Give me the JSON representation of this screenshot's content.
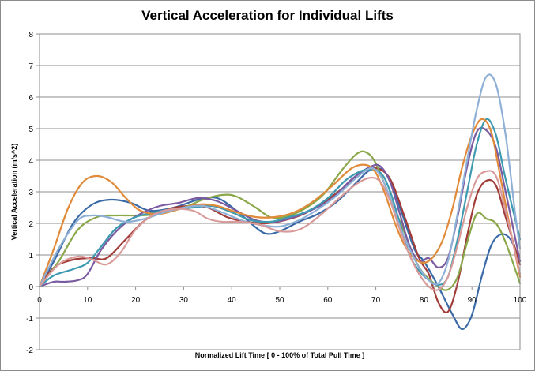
{
  "chart_data": {
    "type": "line",
    "title": "Vertical Acceleration for Individual Lifts",
    "xlabel": "Normalized Lift Time [ 0 - 100% of Total Pull Time ]",
    "ylabel": "Vertical Acceleration (m/s^2)",
    "xlim": [
      0,
      100
    ],
    "ylim": [
      -2,
      8
    ],
    "xticks": [
      "0",
      "10",
      "20",
      "30",
      "40",
      "50",
      "60",
      "70",
      "80",
      "90",
      "100"
    ],
    "yticks": [
      "-2",
      "-1",
      "0",
      "1",
      "2",
      "3",
      "4",
      "5",
      "6",
      "7",
      "8"
    ],
    "grid": "horizontal",
    "legend": "none",
    "series": [
      {
        "color": "#3a6aa6",
        "points": [
          [
            0,
            0
          ],
          [
            3,
            0.8
          ],
          [
            7,
            2.0
          ],
          [
            11,
            2.6
          ],
          [
            15,
            2.75
          ],
          [
            19,
            2.65
          ],
          [
            23,
            2.4
          ],
          [
            28,
            2.5
          ],
          [
            33,
            2.75
          ],
          [
            37,
            2.8
          ],
          [
            41,
            2.4
          ],
          [
            44,
            2.0
          ],
          [
            47,
            1.68
          ],
          [
            50,
            1.75
          ],
          [
            54,
            2.05
          ],
          [
            58,
            2.3
          ],
          [
            62,
            2.7
          ],
          [
            66,
            3.3
          ],
          [
            69,
            3.7
          ],
          [
            72,
            3.6
          ],
          [
            75,
            2.5
          ],
          [
            78,
            1.2
          ],
          [
            80,
            0.8
          ],
          [
            83,
            0.0
          ],
          [
            86,
            -0.9
          ],
          [
            88,
            -1.35
          ],
          [
            90,
            -0.9
          ],
          [
            92,
            0.3
          ],
          [
            94,
            1.3
          ],
          [
            96,
            1.65
          ],
          [
            98,
            1.5
          ],
          [
            100,
            0.8
          ]
        ]
      },
      {
        "color": "#a23c38",
        "points": [
          [
            0,
            0
          ],
          [
            3,
            0.6
          ],
          [
            7,
            0.85
          ],
          [
            11,
            0.9
          ],
          [
            14,
            0.9
          ],
          [
            18,
            1.5
          ],
          [
            22,
            2.1
          ],
          [
            27,
            2.45
          ],
          [
            31,
            2.55
          ],
          [
            35,
            2.5
          ],
          [
            39,
            2.2
          ],
          [
            43,
            2.05
          ],
          [
            47,
            2.0
          ],
          [
            51,
            2.1
          ],
          [
            55,
            2.3
          ],
          [
            59,
            2.65
          ],
          [
            63,
            3.1
          ],
          [
            67,
            3.6
          ],
          [
            70,
            3.75
          ],
          [
            73,
            3.4
          ],
          [
            76,
            2.2
          ],
          [
            79,
            0.9
          ],
          [
            81,
            0.4
          ],
          [
            83,
            -0.5
          ],
          [
            85,
            -0.8
          ],
          [
            87,
            0.1
          ],
          [
            89,
            1.6
          ],
          [
            91,
            2.9
          ],
          [
            93,
            3.35
          ],
          [
            95,
            3.2
          ],
          [
            97,
            2.2
          ],
          [
            100,
            0.7
          ]
        ]
      },
      {
        "color": "#8aa74a",
        "points": [
          [
            0,
            0
          ],
          [
            4,
            0.8
          ],
          [
            8,
            1.8
          ],
          [
            12,
            2.2
          ],
          [
            16,
            2.25
          ],
          [
            20,
            2.25
          ],
          [
            25,
            2.3
          ],
          [
            30,
            2.5
          ],
          [
            34,
            2.75
          ],
          [
            38,
            2.9
          ],
          [
            41,
            2.85
          ],
          [
            45,
            2.5
          ],
          [
            48,
            2.2
          ],
          [
            51,
            2.2
          ],
          [
            55,
            2.45
          ],
          [
            59,
            2.9
          ],
          [
            63,
            3.7
          ],
          [
            66,
            4.2
          ],
          [
            68,
            4.25
          ],
          [
            70,
            3.9
          ],
          [
            73,
            2.8
          ],
          [
            76,
            1.7
          ],
          [
            78,
            0.9
          ],
          [
            80,
            0.4
          ],
          [
            83,
            0.0
          ],
          [
            85,
            -0.1
          ],
          [
            87,
            0.3
          ],
          [
            89,
            1.4
          ],
          [
            91,
            2.3
          ],
          [
            93,
            2.15
          ],
          [
            95,
            2.0
          ],
          [
            97,
            1.4
          ],
          [
            100,
            0.1
          ]
        ]
      },
      {
        "color": "#7a5aa0",
        "points": [
          [
            0,
            0
          ],
          [
            3,
            0.15
          ],
          [
            5,
            0.15
          ],
          [
            8,
            0.2
          ],
          [
            10,
            0.4
          ],
          [
            13,
            1.2
          ],
          [
            17,
            1.9
          ],
          [
            21,
            2.3
          ],
          [
            25,
            2.55
          ],
          [
            29,
            2.65
          ],
          [
            33,
            2.8
          ],
          [
            37,
            2.7
          ],
          [
            41,
            2.4
          ],
          [
            45,
            2.1
          ],
          [
            49,
            2.05
          ],
          [
            53,
            2.2
          ],
          [
            57,
            2.45
          ],
          [
            61,
            2.8
          ],
          [
            65,
            3.4
          ],
          [
            69,
            3.8
          ],
          [
            71,
            3.8
          ],
          [
            73,
            3.3
          ],
          [
            75,
            2.3
          ],
          [
            77,
            1.3
          ],
          [
            79,
            0.8
          ],
          [
            81,
            0.9
          ],
          [
            83,
            0.6
          ],
          [
            85,
            0.9
          ],
          [
            87,
            2.2
          ],
          [
            89,
            3.8
          ],
          [
            91,
            4.9
          ],
          [
            93,
            4.95
          ],
          [
            95,
            4.4
          ],
          [
            97,
            3.0
          ],
          [
            100,
            0.8
          ]
        ]
      },
      {
        "color": "#3d9ab0",
        "points": [
          [
            0,
            0
          ],
          [
            3,
            0.35
          ],
          [
            7,
            0.55
          ],
          [
            10,
            0.75
          ],
          [
            13,
            1.3
          ],
          [
            16,
            1.85
          ],
          [
            20,
            2.2
          ],
          [
            24,
            2.35
          ],
          [
            28,
            2.45
          ],
          [
            32,
            2.5
          ],
          [
            36,
            2.55
          ],
          [
            40,
            2.35
          ],
          [
            44,
            2.1
          ],
          [
            48,
            2.05
          ],
          [
            52,
            2.2
          ],
          [
            56,
            2.4
          ],
          [
            60,
            2.8
          ],
          [
            64,
            3.4
          ],
          [
            68,
            3.7
          ],
          [
            71,
            3.6
          ],
          [
            73,
            3.0
          ],
          [
            75,
            2.0
          ],
          [
            77,
            1.0
          ],
          [
            79,
            0.5
          ],
          [
            81,
            0.2
          ],
          [
            83,
            0.05
          ],
          [
            85,
            0.3
          ],
          [
            87,
            1.5
          ],
          [
            89,
            3.0
          ],
          [
            91,
            4.5
          ],
          [
            93,
            5.3
          ],
          [
            95,
            4.8
          ],
          [
            97,
            3.4
          ],
          [
            100,
            1.5
          ]
        ]
      },
      {
        "color": "#e08a3a",
        "points": [
          [
            0,
            0
          ],
          [
            3,
            1.2
          ],
          [
            6,
            2.5
          ],
          [
            9,
            3.3
          ],
          [
            12,
            3.5
          ],
          [
            15,
            3.3
          ],
          [
            18,
            2.8
          ],
          [
            21,
            2.4
          ],
          [
            25,
            2.3
          ],
          [
            29,
            2.45
          ],
          [
            33,
            2.6
          ],
          [
            37,
            2.55
          ],
          [
            41,
            2.35
          ],
          [
            45,
            2.2
          ],
          [
            49,
            2.2
          ],
          [
            53,
            2.35
          ],
          [
            57,
            2.7
          ],
          [
            61,
            3.2
          ],
          [
            65,
            3.75
          ],
          [
            68,
            3.85
          ],
          [
            70,
            3.6
          ],
          [
            72,
            2.9
          ],
          [
            74,
            2.0
          ],
          [
            76,
            1.3
          ],
          [
            78,
            0.9
          ],
          [
            80,
            0.75
          ],
          [
            82,
            0.95
          ],
          [
            84,
            1.5
          ],
          [
            86,
            2.5
          ],
          [
            88,
            3.8
          ],
          [
            90,
            4.8
          ],
          [
            92,
            5.3
          ],
          [
            94,
            4.9
          ],
          [
            96,
            3.4
          ],
          [
            98,
            1.8
          ],
          [
            100,
            0.3
          ]
        ]
      },
      {
        "color": "#8fb0d6",
        "points": [
          [
            0,
            0
          ],
          [
            4,
            1.2
          ],
          [
            8,
            2.1
          ],
          [
            11,
            2.25
          ],
          [
            14,
            2.2
          ],
          [
            18,
            2.05
          ],
          [
            22,
            2.15
          ],
          [
            26,
            2.35
          ],
          [
            30,
            2.5
          ],
          [
            34,
            2.55
          ],
          [
            38,
            2.35
          ],
          [
            42,
            2.1
          ],
          [
            46,
            1.95
          ],
          [
            50,
            1.9
          ],
          [
            54,
            2.1
          ],
          [
            58,
            2.45
          ],
          [
            62,
            2.9
          ],
          [
            66,
            3.45
          ],
          [
            69,
            3.75
          ],
          [
            71,
            3.5
          ],
          [
            73,
            2.8
          ],
          [
            75,
            1.9
          ],
          [
            77,
            1.2
          ],
          [
            79,
            0.6
          ],
          [
            81,
            0.2
          ],
          [
            83,
            0.1
          ],
          [
            85,
            0.8
          ],
          [
            87,
            2.3
          ],
          [
            89,
            4.0
          ],
          [
            91,
            5.6
          ],
          [
            93,
            6.65
          ],
          [
            95,
            6.4
          ],
          [
            97,
            4.8
          ],
          [
            99,
            2.3
          ],
          [
            100,
            1.2
          ]
        ]
      },
      {
        "color": "#d99a9a",
        "points": [
          [
            0,
            0
          ],
          [
            4,
            0.7
          ],
          [
            8,
            0.95
          ],
          [
            11,
            0.85
          ],
          [
            14,
            0.7
          ],
          [
            17,
            1.1
          ],
          [
            20,
            1.8
          ],
          [
            24,
            2.3
          ],
          [
            28,
            2.45
          ],
          [
            32,
            2.4
          ],
          [
            35,
            2.15
          ],
          [
            38,
            2.05
          ],
          [
            42,
            2.05
          ],
          [
            46,
            1.95
          ],
          [
            50,
            1.75
          ],
          [
            54,
            1.8
          ],
          [
            58,
            2.2
          ],
          [
            62,
            2.75
          ],
          [
            66,
            3.25
          ],
          [
            69,
            3.45
          ],
          [
            71,
            3.3
          ],
          [
            73,
            2.7
          ],
          [
            75,
            1.8
          ],
          [
            77,
            1.0
          ],
          [
            79,
            0.4
          ],
          [
            81,
            0.0
          ],
          [
            83,
            -0.1
          ],
          [
            85,
            0.3
          ],
          [
            87,
            1.3
          ],
          [
            89,
            2.5
          ],
          [
            91,
            3.4
          ],
          [
            93,
            3.65
          ],
          [
            95,
            3.5
          ],
          [
            97,
            2.4
          ],
          [
            100,
            0.4
          ]
        ]
      }
    ]
  }
}
